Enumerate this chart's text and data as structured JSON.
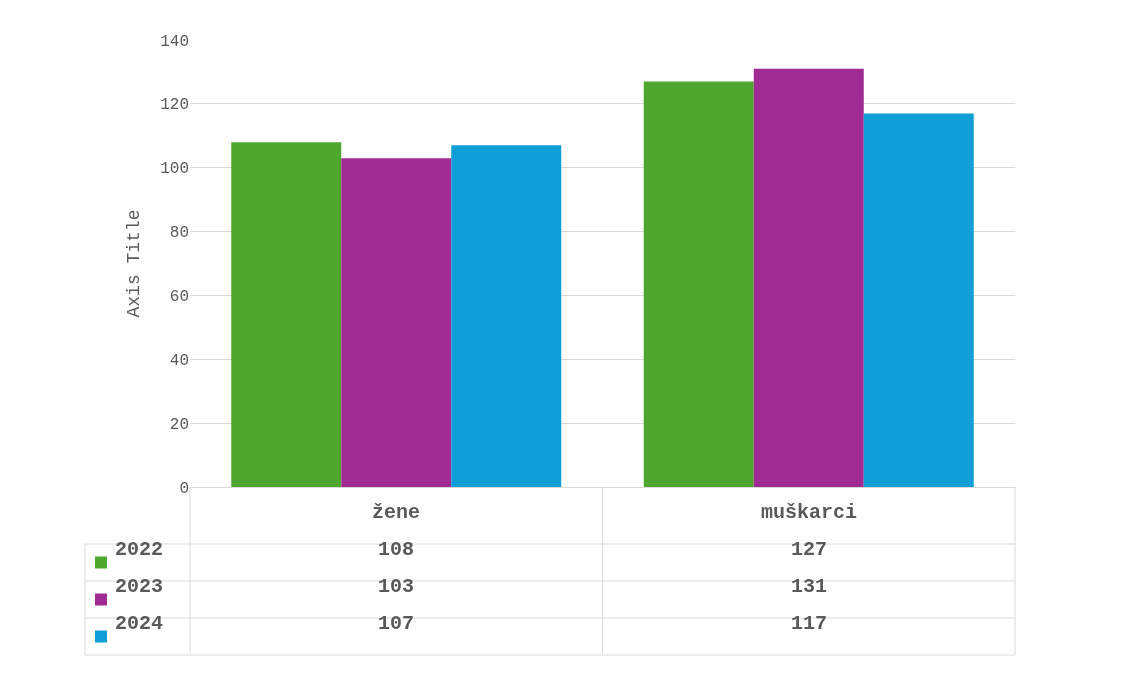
{
  "chart_data": {
    "type": "bar",
    "ylabel": "Axis Title",
    "categories": [
      "žene",
      "muškarci"
    ],
    "series": [
      {
        "name": "2022",
        "color": "#4ea72e",
        "values": [
          108,
          127
        ]
      },
      {
        "name": "2023",
        "color": "#a02b93",
        "values": [
          103,
          131
        ]
      },
      {
        "name": "2024",
        "color": "#0f9ed5",
        "values": [
          107,
          117
        ]
      }
    ],
    "ylim": [
      0,
      140
    ],
    "yticks": [
      0,
      20,
      40,
      60,
      80,
      100,
      120,
      140
    ],
    "grid": "y",
    "data_labels": true,
    "legend": "bottom"
  }
}
